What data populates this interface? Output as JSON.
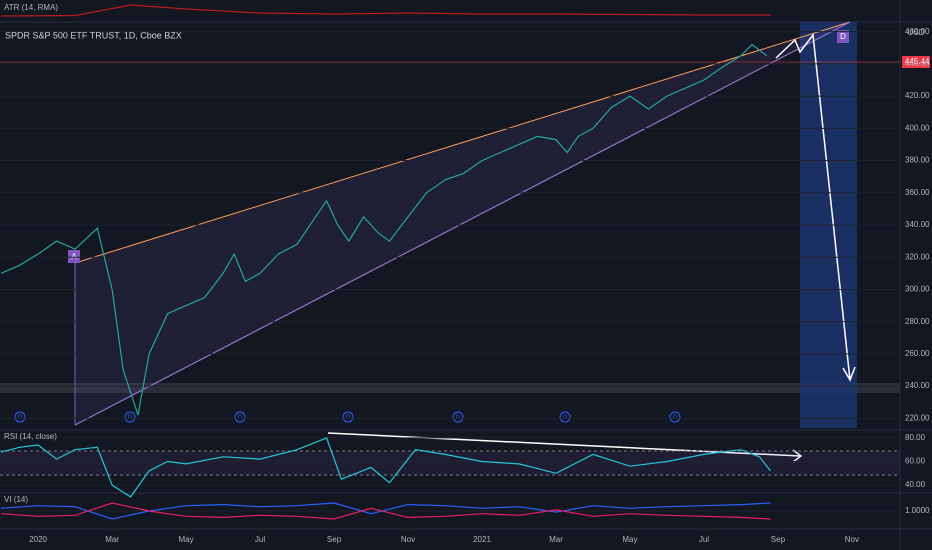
{
  "title": "SPDR S&P 500 ETF TRUST, 1D, Cboe BZX",
  "currency": "USD",
  "price_label": "445.44",
  "pattern_labels": [
    "A",
    "D"
  ],
  "dividend_marker": "D",
  "chart_data": [
    {
      "type": "line",
      "color": "#26a69a",
      "x": [
        -1,
        -0.5,
        0,
        0.5,
        1,
        1.6,
        2.0,
        2.3,
        2.7,
        3.0,
        3.5,
        4,
        4.5,
        5,
        5.3,
        5.6,
        6,
        6.5,
        7,
        7.5,
        7.8,
        8.1,
        8.4,
        8.8,
        9.2,
        9.5,
        10,
        10.5,
        11,
        11.5,
        12,
        12.5,
        13,
        13.5,
        14,
        14.3,
        14.6,
        15,
        15.5,
        16,
        16.5,
        17,
        17.5,
        18,
        18.5,
        19,
        19.3,
        19.7
      ],
      "values": [
        310,
        315,
        322,
        330,
        325,
        338,
        300,
        250,
        222,
        260,
        285,
        290,
        295,
        310,
        322,
        305,
        310,
        322,
        328,
        345,
        355,
        340,
        330,
        345,
        335,
        330,
        345,
        360,
        368,
        372,
        380,
        385,
        390,
        395,
        393,
        385,
        395,
        400,
        413,
        420,
        412,
        420,
        425,
        430,
        438,
        445,
        452,
        445
      ],
      "xlim": [
        -1.03,
        23.3
      ],
      "xticks": [
        {
          "value": 0,
          "label": "2020"
        },
        {
          "value": 2,
          "label": "Mar"
        },
        {
          "value": 4,
          "label": "May"
        },
        {
          "value": 6,
          "label": "Jul"
        },
        {
          "value": 8,
          "label": "Sep"
        },
        {
          "value": 10,
          "label": "Nov"
        },
        {
          "value": 12,
          "label": "2021"
        },
        {
          "value": 14,
          "label": "Mar"
        },
        {
          "value": 16,
          "label": "May"
        },
        {
          "value": 18,
          "label": "Jul"
        },
        {
          "value": 20,
          "label": "Sep"
        },
        {
          "value": 22,
          "label": "Nov"
        }
      ],
      "ylim": [
        214,
        466
      ],
      "yticks": [
        {
          "value": 220,
          "label": "220.00"
        },
        {
          "value": 240,
          "label": "240.00"
        },
        {
          "value": 260,
          "label": "260.00"
        },
        {
          "value": 280,
          "label": "280.00"
        },
        {
          "value": 300,
          "label": "300.00"
        },
        {
          "value": 320,
          "label": "320.00"
        },
        {
          "value": 340,
          "label": "340.00"
        },
        {
          "value": 360,
          "label": "360.00"
        },
        {
          "value": 380,
          "label": "380.00"
        },
        {
          "value": 400,
          "label": "400.00"
        },
        {
          "value": 420,
          "label": "420.00"
        },
        {
          "value": 440,
          "label": "440.00"
        },
        {
          "value": 460,
          "label": "460.00"
        }
      ]
    },
    {
      "type": "line",
      "title": "RSI (14, close)",
      "color": "#26c6da",
      "x": [
        -1,
        -0.5,
        0,
        0.5,
        1,
        1.6,
        2.0,
        2.5,
        3,
        3.5,
        4,
        5,
        6,
        7,
        7.8,
        8.2,
        9,
        9.5,
        10.2,
        11,
        12,
        13,
        14,
        15,
        16,
        17,
        18,
        19,
        19.5,
        19.8
      ],
      "values": [
        68,
        72,
        74,
        62,
        70,
        72,
        40,
        30,
        52,
        60,
        58,
        64,
        62,
        70,
        80,
        45,
        55,
        42,
        70,
        66,
        60,
        58,
        50,
        66,
        56,
        60,
        66,
        70,
        64,
        52
      ],
      "ylim": [
        35,
        85
      ],
      "yticks": [
        {
          "value": 40,
          "label": "40.00"
        },
        {
          "value": 60,
          "label": "60.00"
        },
        {
          "value": 80,
          "label": "80.00"
        }
      ]
    },
    {
      "type": "line",
      "title": "VI (14)",
      "x": [
        -1,
        0,
        1,
        2,
        3,
        4,
        5,
        6,
        7,
        8,
        9,
        10,
        11,
        12,
        13,
        14,
        15,
        16,
        17,
        18,
        19,
        19.8
      ],
      "series": [
        {
          "color": "#2962ff",
          "values": [
            1.05,
            1.1,
            1.08,
            0.85,
            1.0,
            1.1,
            1.12,
            1.08,
            1.1,
            1.15,
            0.95,
            1.12,
            1.1,
            1.05,
            1.08,
            0.98,
            1.1,
            1.05,
            1.08,
            1.1,
            1.12,
            1.15
          ]
        },
        {
          "color": "#e91e63",
          "values": [
            0.95,
            0.9,
            0.92,
            1.15,
            1.0,
            0.9,
            0.88,
            0.92,
            0.9,
            0.85,
            1.05,
            0.88,
            0.9,
            0.95,
            0.92,
            1.02,
            0.9,
            0.95,
            0.92,
            0.9,
            0.88,
            0.85
          ]
        }
      ],
      "ylim": [
        0.7,
        1.3
      ],
      "yticks": [
        {
          "value": 1,
          "label": "1.0000"
        }
      ]
    },
    {
      "type": "line",
      "title": "ATR (14, RMA)",
      "color": "#b71c1c",
      "x": [
        -1,
        1,
        2.5,
        4,
        6,
        8,
        10,
        12,
        14,
        16,
        18,
        19.8
      ],
      "values": [
        3,
        3.5,
        14,
        10,
        6,
        5,
        6,
        5,
        5,
        4.5,
        4,
        4
      ],
      "ylim": [
        0,
        16
      ]
    }
  ]
}
